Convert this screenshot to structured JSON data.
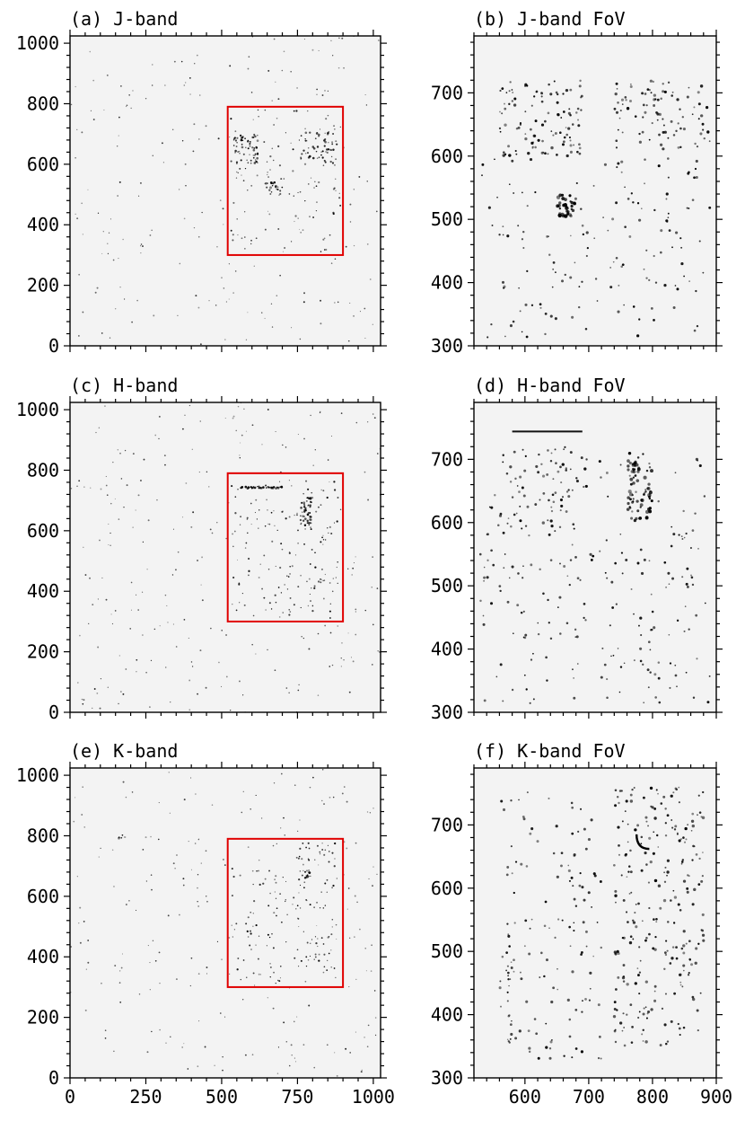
{
  "chart_data": [
    {
      "type": "heatmap",
      "title": "(a) J-band",
      "xlim": [
        0,
        1024
      ],
      "ylim": [
        0,
        1024
      ],
      "xticks": [
        0,
        250,
        500,
        750,
        1000
      ],
      "yticks": [
        0,
        200,
        400,
        600,
        800,
        1000
      ],
      "show_xtick_labels": false,
      "fov_box": {
        "x": [
          520,
          900
        ],
        "y": [
          300,
          790
        ]
      },
      "clusters": [
        {
          "x": [
            540,
            620
          ],
          "y": [
            600,
            700
          ],
          "n": 60,
          "size": 1.2
        },
        {
          "x": [
            640,
            700
          ],
          "y": [
            500,
            540
          ],
          "n": 20,
          "size": 1.3
        },
        {
          "x": [
            760,
            880
          ],
          "y": [
            600,
            710
          ],
          "n": 50,
          "size": 1.2
        },
        {
          "x": [
            530,
            890
          ],
          "y": [
            310,
            780
          ],
          "n": 80,
          "size": 1.0
        }
      ],
      "background_density": 220
    },
    {
      "type": "heatmap",
      "title": "(b) J-band FoV",
      "xlim": [
        520,
        900
      ],
      "ylim": [
        300,
        790
      ],
      "xticks": [
        600,
        700,
        800,
        900
      ],
      "yticks": [
        300,
        400,
        500,
        600,
        700
      ],
      "show_xtick_labels": false,
      "clusters": [
        {
          "x": [
            560,
            690
          ],
          "y": [
            600,
            720
          ],
          "n": 110,
          "size": 1.5
        },
        {
          "x": [
            650,
            680
          ],
          "y": [
            505,
            540
          ],
          "n": 40,
          "size": 2
        },
        {
          "x": [
            740,
            890
          ],
          "y": [
            610,
            720
          ],
          "n": 90,
          "size": 1.5
        },
        {
          "x": [
            530,
            890
          ],
          "y": [
            310,
            600
          ],
          "n": 150,
          "size": 1.4
        }
      ],
      "background_density": 0
    },
    {
      "type": "heatmap",
      "title": "(c) H-band",
      "xlim": [
        0,
        1024
      ],
      "ylim": [
        0,
        1024
      ],
      "xticks": [
        0,
        250,
        500,
        750,
        1000
      ],
      "yticks": [
        0,
        200,
        400,
        600,
        800,
        1000
      ],
      "show_xtick_labels": false,
      "fov_box": {
        "x": [
          520,
          900
        ],
        "y": [
          300,
          790
        ]
      },
      "clusters": [
        {
          "x": [
            560,
            700
          ],
          "y": [
            740,
            746
          ],
          "n": 50,
          "size": 1.2
        },
        {
          "x": [
            760,
            800
          ],
          "y": [
            600,
            710
          ],
          "n": 50,
          "size": 1.3
        },
        {
          "x": [
            530,
            890
          ],
          "y": [
            310,
            780
          ],
          "n": 120,
          "size": 1.0
        }
      ],
      "background_density": 260
    },
    {
      "type": "heatmap",
      "title": "(d) H-band FoV",
      "xlim": [
        520,
        900
      ],
      "ylim": [
        300,
        790
      ],
      "xticks": [
        600,
        700,
        800,
        900
      ],
      "yticks": [
        300,
        400,
        500,
        600,
        700,
        800
      ],
      "hide_tick_labels_above": 790,
      "show_xtick_labels": false,
      "streak": {
        "x": [
          580,
          690
        ],
        "y": 744
      },
      "clusters": [
        {
          "x": [
            760,
            800
          ],
          "y": [
            600,
            710
          ],
          "n": 80,
          "size": 1.8
        },
        {
          "x": [
            560,
            700
          ],
          "y": [
            580,
            720
          ],
          "n": 60,
          "size": 1.5
        },
        {
          "x": [
            530,
            890
          ],
          "y": [
            310,
            700
          ],
          "n": 220,
          "size": 1.4
        }
      ],
      "background_density": 0
    },
    {
      "type": "heatmap",
      "title": "(e) K-band",
      "xlim": [
        0,
        1024
      ],
      "ylim": [
        0,
        1024
      ],
      "xticks": [
        0,
        250,
        500,
        750,
        1000
      ],
      "yticks": [
        0,
        200,
        400,
        600,
        800,
        1000
      ],
      "show_xtick_labels": true,
      "fov_box": {
        "x": [
          520,
          900
        ],
        "y": [
          300,
          790
        ]
      },
      "clusters": [
        {
          "x": [
            765,
            790
          ],
          "y": [
            660,
            690
          ],
          "n": 10,
          "size": 1.4
        },
        {
          "x": [
            160,
            175
          ],
          "y": [
            790,
            805
          ],
          "n": 4,
          "size": 1.5
        },
        {
          "x": [
            740,
            880
          ],
          "y": [
            320,
            780
          ],
          "n": 90,
          "size": 1.0
        },
        {
          "x": [
            530,
            720
          ],
          "y": [
            320,
            700
          ],
          "n": 50,
          "size": 1.0
        }
      ],
      "background_density": 230
    },
    {
      "type": "heatmap",
      "title": "(f) K-band FoV",
      "xlim": [
        520,
        900
      ],
      "ylim": [
        300,
        790
      ],
      "xticks": [
        600,
        700,
        800,
        900
      ],
      "yticks": [
        300,
        400,
        500,
        600,
        700
      ],
      "show_xtick_labels": true,
      "arc": {
        "x": [
          775,
          795
        ],
        "y": [
          662,
          685
        ]
      },
      "clusters": [
        {
          "x": [
            740,
            880
          ],
          "y": [
            350,
            760
          ],
          "n": 260,
          "size": 1.5
        },
        {
          "x": [
            560,
            720
          ],
          "y": [
            330,
            760
          ],
          "n": 130,
          "size": 1.4
        },
        {
          "x": [
            570,
            580
          ],
          "y": [
            350,
            560
          ],
          "n": 20,
          "size": 1.3
        }
      ],
      "background_density": 0
    }
  ]
}
